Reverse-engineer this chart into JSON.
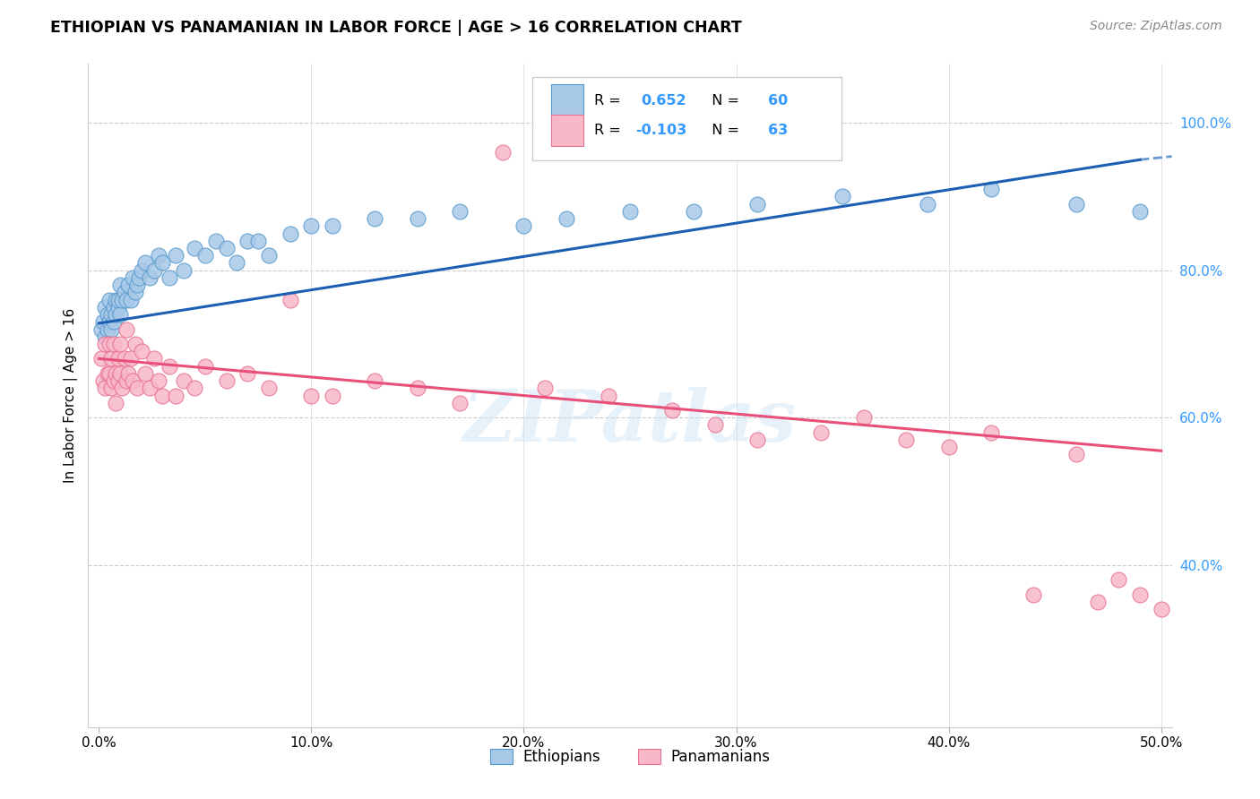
{
  "title": "ETHIOPIAN VS PANAMANIAN IN LABOR FORCE | AGE > 16 CORRELATION CHART",
  "source": "Source: ZipAtlas.com",
  "ylabel": "In Labor Force | Age > 16",
  "xlim": [
    -0.005,
    0.505
  ],
  "ylim": [
    0.18,
    1.08
  ],
  "x_tick_vals": [
    0.0,
    0.1,
    0.2,
    0.3,
    0.4,
    0.5
  ],
  "x_tick_labels": [
    "0.0%",
    "10.0%",
    "20.0%",
    "30.0%",
    "40.0%",
    "50.0%"
  ],
  "y_tick_vals": [
    0.4,
    0.6,
    0.8,
    1.0
  ],
  "y_tick_labels": [
    "40.0%",
    "60.0%",
    "80.0%",
    "100.0%"
  ],
  "R_ethiopian": 0.652,
  "N_ethiopian": 60,
  "R_panamanian": -0.103,
  "N_panamanian": 63,
  "ethiopian_fill": "#a8c8e8",
  "ethiopian_edge": "#5599cc",
  "panamanian_fill": "#f8b8c8",
  "panamanian_edge": "#e87090",
  "trend_blue": "#1a5fb4",
  "trend_pink": "#e8507a",
  "watermark": "ZIPatlas",
  "legend_label_eth": "Ethiopians",
  "legend_label_pan": "Panamanians",
  "ethiopian_x": [
    0.001,
    0.002,
    0.003,
    0.003,
    0.004,
    0.004,
    0.005,
    0.005,
    0.006,
    0.006,
    0.007,
    0.007,
    0.008,
    0.008,
    0.009,
    0.009,
    0.01,
    0.01,
    0.011,
    0.012,
    0.013,
    0.014,
    0.015,
    0.016,
    0.017,
    0.018,
    0.019,
    0.02,
    0.022,
    0.024,
    0.026,
    0.028,
    0.03,
    0.033,
    0.036,
    0.04,
    0.045,
    0.05,
    0.055,
    0.06,
    0.065,
    0.07,
    0.075,
    0.08,
    0.09,
    0.1,
    0.11,
    0.13,
    0.15,
    0.17,
    0.2,
    0.22,
    0.25,
    0.28,
    0.31,
    0.35,
    0.39,
    0.42,
    0.46,
    0.49
  ],
  "ethiopian_y": [
    0.72,
    0.73,
    0.71,
    0.75,
    0.72,
    0.74,
    0.73,
    0.76,
    0.74,
    0.72,
    0.75,
    0.73,
    0.76,
    0.74,
    0.75,
    0.76,
    0.78,
    0.74,
    0.76,
    0.77,
    0.76,
    0.78,
    0.76,
    0.79,
    0.77,
    0.78,
    0.79,
    0.8,
    0.81,
    0.79,
    0.8,
    0.82,
    0.81,
    0.79,
    0.82,
    0.8,
    0.83,
    0.82,
    0.84,
    0.83,
    0.81,
    0.84,
    0.84,
    0.82,
    0.85,
    0.86,
    0.86,
    0.87,
    0.87,
    0.88,
    0.86,
    0.87,
    0.88,
    0.88,
    0.89,
    0.9,
    0.89,
    0.91,
    0.89,
    0.88
  ],
  "panamanian_x": [
    0.001,
    0.002,
    0.003,
    0.003,
    0.004,
    0.005,
    0.005,
    0.006,
    0.006,
    0.007,
    0.007,
    0.008,
    0.008,
    0.009,
    0.009,
    0.01,
    0.01,
    0.011,
    0.012,
    0.013,
    0.013,
    0.014,
    0.015,
    0.016,
    0.017,
    0.018,
    0.02,
    0.022,
    0.024,
    0.026,
    0.028,
    0.03,
    0.033,
    0.036,
    0.04,
    0.045,
    0.05,
    0.06,
    0.07,
    0.08,
    0.09,
    0.1,
    0.11,
    0.13,
    0.15,
    0.17,
    0.19,
    0.21,
    0.24,
    0.27,
    0.29,
    0.31,
    0.34,
    0.36,
    0.38,
    0.4,
    0.42,
    0.44,
    0.46,
    0.47,
    0.48,
    0.49,
    0.5
  ],
  "panamanian_y": [
    0.68,
    0.65,
    0.7,
    0.64,
    0.66,
    0.7,
    0.66,
    0.64,
    0.68,
    0.65,
    0.7,
    0.62,
    0.66,
    0.65,
    0.68,
    0.66,
    0.7,
    0.64,
    0.68,
    0.65,
    0.72,
    0.66,
    0.68,
    0.65,
    0.7,
    0.64,
    0.69,
    0.66,
    0.64,
    0.68,
    0.65,
    0.63,
    0.67,
    0.63,
    0.65,
    0.64,
    0.67,
    0.65,
    0.66,
    0.64,
    0.76,
    0.63,
    0.63,
    0.65,
    0.64,
    0.62,
    0.96,
    0.64,
    0.63,
    0.61,
    0.59,
    0.57,
    0.58,
    0.6,
    0.57,
    0.56,
    0.58,
    0.36,
    0.55,
    0.35,
    0.38,
    0.36,
    0.34
  ],
  "eth_trend_x0": 0.0,
  "eth_trend_y0": 0.728,
  "eth_trend_x1": 0.49,
  "eth_trend_y1": 0.95,
  "pan_trend_x0": 0.0,
  "pan_trend_y0": 0.68,
  "pan_trend_x1": 0.5,
  "pan_trend_y1": 0.555
}
